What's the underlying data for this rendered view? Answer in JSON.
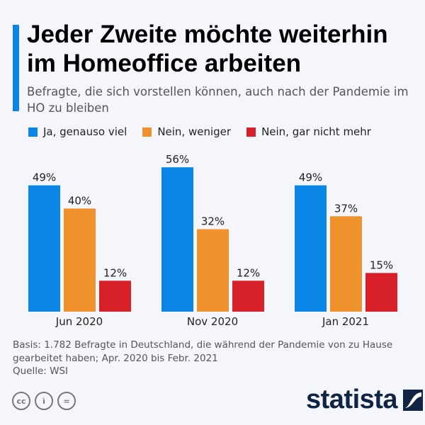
{
  "title": "Jeder Zweite möchte weiterhin im Homeoffice arbeiten",
  "subtitle": "Befragte, die sich vorstellen können, auch nach der Pandemie im HO zu bleiben",
  "note": "Basis: 1.782 Befragte in Deutschland, die während der Pandemie von zu Hause gearbeitet haben; Apr. 2020 bis Febr. 2021",
  "source": "Quelle: WSI",
  "brand": "statista",
  "license_icons": [
    "cc-icon",
    "by-icon",
    "nd-icon"
  ],
  "chart_data": {
    "type": "bar",
    "title": "Jeder Zweite möchte weiterhin im Homeoffice arbeiten",
    "categories": [
      "Jun 2020",
      "Nov 2020",
      "Jan 2021"
    ],
    "series": [
      {
        "name": "Ja, genauso viel",
        "color": "#0a85e6",
        "values": [
          49,
          56,
          49
        ]
      },
      {
        "name": "Nein, weniger",
        "color": "#f0922b",
        "values": [
          40,
          32,
          37
        ]
      },
      {
        "name": "Nein, gar nicht mehr",
        "color": "#d61f26",
        "values": [
          12,
          12,
          15
        ]
      }
    ],
    "unit": "%",
    "ylim": [
      0,
      60
    ],
    "grid": false,
    "legend": "top-left",
    "xlabel": "",
    "ylabel": ""
  }
}
